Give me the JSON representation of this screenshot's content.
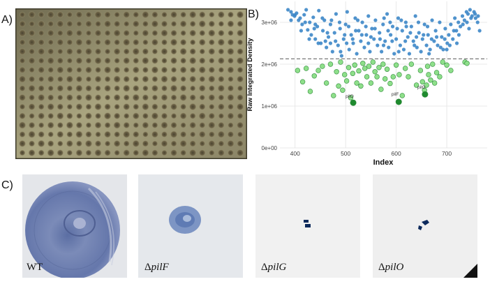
{
  "panels": {
    "a_label": "A)",
    "b_label": "B)",
    "c_label": "C)"
  },
  "plate": {
    "rows": 16,
    "cols": 24
  },
  "chart_data": {
    "type": "scatter",
    "xlabel": "Index",
    "ylabel": "Raw Integrated Density",
    "xlim": [
      370,
      780
    ],
    "ylim": [
      0,
      3500000
    ],
    "xticks": [
      400,
      500,
      600,
      700
    ],
    "yticks": [
      0,
      1000000,
      2000000,
      3000000
    ],
    "ytick_labels": [
      "0e+00",
      "1e+06",
      "2e+06",
      "3e+06"
    ],
    "threshold": 2130000,
    "series": [
      {
        "color": "#3d87c8",
        "points": [
          [
            386,
            3300000
          ],
          [
            392,
            3250000
          ],
          [
            395,
            3180000
          ],
          [
            399,
            3150000
          ],
          [
            403,
            3220000
          ],
          [
            407,
            3050000
          ],
          [
            410,
            3100000
          ],
          [
            414,
            2950000
          ],
          [
            418,
            3180000
          ],
          [
            422,
            3300000
          ],
          [
            425,
            2820000
          ],
          [
            429,
            3000000
          ],
          [
            432,
            2700000
          ],
          [
            436,
            3120000
          ],
          [
            440,
            2600000
          ],
          [
            444,
            2900000
          ],
          [
            447,
            3280000
          ],
          [
            451,
            2500000
          ],
          [
            455,
            2800000
          ],
          [
            458,
            3050000
          ],
          [
            462,
            2400000
          ],
          [
            466,
            2650000
          ],
          [
            470,
            2950000
          ],
          [
            474,
            2300000
          ],
          [
            478,
            2750000
          ],
          [
            481,
            3200000
          ],
          [
            485,
            2450000
          ],
          [
            489,
            2850000
          ],
          [
            492,
            2200000
          ],
          [
            496,
            2600000
          ],
          [
            500,
            2950000
          ],
          [
            503,
            3250000
          ],
          [
            507,
            2350000
          ],
          [
            511,
            2700000
          ],
          [
            515,
            2500000
          ],
          [
            519,
            3100000
          ],
          [
            522,
            2250000
          ],
          [
            526,
            2800000
          ],
          [
            530,
            2550000
          ],
          [
            533,
            3000000
          ],
          [
            537,
            2400000
          ],
          [
            541,
            2700000
          ],
          [
            545,
            3150000
          ],
          [
            548,
            2300000
          ],
          [
            552,
            2850000
          ],
          [
            556,
            2600000
          ],
          [
            559,
            3050000
          ],
          [
            563,
            2450000
          ],
          [
            567,
            2750000
          ],
          [
            571,
            2300000
          ],
          [
            574,
            2950000
          ],
          [
            578,
            2550000
          ],
          [
            582,
            3200000
          ],
          [
            585,
            2400000
          ],
          [
            589,
            2700000
          ],
          [
            593,
            2900000
          ],
          [
            596,
            2250000
          ],
          [
            600,
            2600000
          ],
          [
            604,
            3100000
          ],
          [
            608,
            2450000
          ],
          [
            612,
            2800000
          ],
          [
            615,
            2350000
          ],
          [
            619,
            3000000
          ],
          [
            623,
            2650000
          ],
          [
            626,
            2250000
          ],
          [
            630,
            2900000
          ],
          [
            634,
            2550000
          ],
          [
            638,
            3150000
          ],
          [
            641,
            2400000
          ],
          [
            645,
            2750000
          ],
          [
            649,
            2300000
          ],
          [
            652,
            2600000
          ],
          [
            656,
            2950000
          ],
          [
            660,
            2450000
          ],
          [
            663,
            2700000
          ],
          [
            667,
            2350000
          ],
          [
            671,
            3050000
          ],
          [
            675,
            2550000
          ],
          [
            678,
            2800000
          ],
          [
            682,
            2450000
          ],
          [
            686,
            3000000
          ],
          [
            690,
            2650000
          ],
          [
            693,
            2350000
          ],
          [
            697,
            2850000
          ],
          [
            701,
            2500000
          ],
          [
            704,
            2700000
          ],
          [
            708,
            2950000
          ],
          [
            712,
            2600000
          ],
          [
            716,
            3100000
          ],
          [
            719,
            2800000
          ],
          [
            723,
            3000000
          ],
          [
            727,
            2900000
          ],
          [
            731,
            3150000
          ],
          [
            735,
            3050000
          ],
          [
            739,
            3250000
          ],
          [
            742,
            3200000
          ],
          [
            746,
            3300000
          ],
          [
            750,
            3150000
          ],
          [
            754,
            3250000
          ],
          [
            757,
            3100000
          ],
          [
            761,
            3000000
          ],
          [
            765,
            2800000
          ],
          [
            392,
            3050000
          ],
          [
            400,
            3180000
          ],
          [
            412,
            2800000
          ],
          [
            420,
            3000000
          ],
          [
            428,
            2600000
          ],
          [
            438,
            2850000
          ],
          [
            446,
            2500000
          ],
          [
            454,
            3100000
          ],
          [
            464,
            2750000
          ],
          [
            472,
            3050000
          ],
          [
            480,
            2550000
          ],
          [
            488,
            3000000
          ],
          [
            498,
            2700000
          ],
          [
            506,
            2900000
          ],
          [
            514,
            2600000
          ],
          [
            524,
            3050000
          ],
          [
            532,
            2700000
          ],
          [
            540,
            2900000
          ],
          [
            550,
            2650000
          ],
          [
            558,
            2850000
          ],
          [
            568,
            2600000
          ],
          [
            576,
            3100000
          ],
          [
            584,
            2800000
          ],
          [
            592,
            2550000
          ],
          [
            602,
            2850000
          ],
          [
            610,
            3050000
          ],
          [
            618,
            2550000
          ],
          [
            628,
            2750000
          ],
          [
            636,
            2450000
          ],
          [
            644,
            3000000
          ],
          [
            654,
            2700000
          ],
          [
            662,
            2900000
          ],
          [
            670,
            2600000
          ],
          [
            680,
            2650000
          ],
          [
            688,
            2400000
          ],
          [
            696,
            2600000
          ],
          [
            706,
            2450000
          ],
          [
            714,
            2800000
          ],
          [
            724,
            2700000
          ],
          [
            732,
            2950000
          ],
          [
            740,
            3000000
          ],
          [
            748,
            3100000
          ],
          [
            756,
            3200000
          ],
          [
            762,
            3150000
          ],
          [
            440,
            2950000
          ],
          [
            460,
            2550000
          ],
          [
            490,
            2300000
          ],
          [
            520,
            2800000
          ],
          [
            545,
            2500000
          ],
          [
            575,
            2450000
          ],
          [
            605,
            2300000
          ],
          [
            640,
            2650000
          ],
          [
            665,
            2250000
          ],
          [
            700,
            2350000
          ],
          [
            720,
            2500000
          ],
          [
            744,
            2850000
          ],
          [
            502,
            2500000
          ],
          [
            588,
            3000000
          ],
          [
            620,
            2900000
          ],
          [
            470,
            2500000
          ]
        ]
      },
      {
        "color": "#8edf8a",
        "points": [
          [
            405,
            1850000
          ],
          [
            415,
            1580000
          ],
          [
            422,
            1900000
          ],
          [
            430,
            1350000
          ],
          [
            438,
            1720000
          ],
          [
            446,
            1850000
          ],
          [
            454,
            1950000
          ],
          [
            462,
            1550000
          ],
          [
            470,
            2000000
          ],
          [
            476,
            1250000
          ],
          [
            482,
            1820000
          ],
          [
            486,
            1480000
          ],
          [
            490,
            2050000
          ],
          [
            494,
            1380000
          ],
          [
            498,
            1750000
          ],
          [
            502,
            1600000
          ],
          [
            506,
            1920000
          ],
          [
            510,
            1200000
          ],
          [
            514,
            1780000
          ],
          [
            518,
            1980000
          ],
          [
            522,
            1550000
          ],
          [
            526,
            1840000
          ],
          [
            530,
            1480000
          ],
          [
            534,
            2020000
          ],
          [
            538,
            1900000
          ],
          [
            542,
            1700000
          ],
          [
            546,
            1950000
          ],
          [
            550,
            1550000
          ],
          [
            554,
            2050000
          ],
          [
            558,
            1820000
          ],
          [
            562,
            1700000
          ],
          [
            566,
            1920000
          ],
          [
            570,
            1400000
          ],
          [
            574,
            2000000
          ],
          [
            578,
            1650000
          ],
          [
            582,
            1880000
          ],
          [
            588,
            1540000
          ],
          [
            594,
            1700000
          ],
          [
            600,
            1980000
          ],
          [
            606,
            1750000
          ],
          [
            612,
            1250000
          ],
          [
            618,
            1900000
          ],
          [
            624,
            1700000
          ],
          [
            630,
            2000000
          ],
          [
            640,
            1500000
          ],
          [
            648,
            1850000
          ],
          [
            652,
            1580000
          ],
          [
            656,
            1380000
          ],
          [
            660,
            1500000
          ],
          [
            662,
            1950000
          ],
          [
            664,
            1750000
          ],
          [
            668,
            1620000
          ],
          [
            672,
            2000000
          ],
          [
            676,
            1550000
          ],
          [
            680,
            1800000
          ],
          [
            686,
            1700000
          ],
          [
            692,
            2050000
          ],
          [
            700,
            1980000
          ],
          [
            708,
            1850000
          ],
          [
            736,
            2050000
          ],
          [
            740,
            2020000
          ]
        ]
      },
      {
        "color": "#1e8a2e",
        "points": [
          [
            515,
            1080000
          ],
          [
            605,
            1100000
          ],
          [
            657,
            1280000
          ]
        ]
      }
    ],
    "annotations": [
      {
        "text": "pilO",
        "x": 508,
        "y": 1200000
      },
      {
        "text": "pilF",
        "x": 598,
        "y": 1250000
      },
      {
        "text": "pilG",
        "x": 650,
        "y": 1420000
      }
    ]
  },
  "captions": [
    {
      "prefix": "",
      "text": "WT"
    },
    {
      "prefix": "Δ",
      "text": "pilF"
    },
    {
      "prefix": "Δ",
      "text": "pilG"
    },
    {
      "prefix": "Δ",
      "text": "pilO"
    }
  ]
}
